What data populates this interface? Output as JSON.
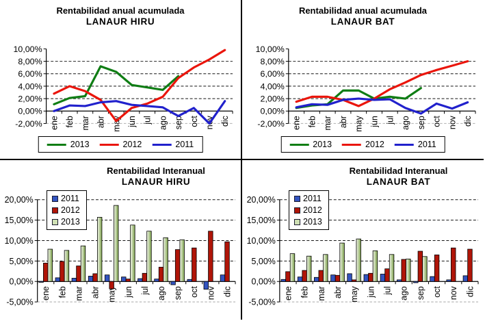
{
  "page": {
    "background": "#ffffff",
    "divider_color": "#000000"
  },
  "chart_data": [
    {
      "id": "acumulada-hiru",
      "type": "line",
      "title": "Rentabilidad anual acumulada",
      "subtitle": "LANAUR HIRU",
      "categories": [
        "ene",
        "feb",
        "mar",
        "abr",
        "may",
        "jun",
        "jul",
        "ago",
        "sep",
        "oct",
        "nov",
        "dic"
      ],
      "ylim": [
        -2,
        10
      ],
      "yticks": [
        {
          "value": 10,
          "label": "10,00%"
        },
        {
          "value": 8,
          "label": "8,00%"
        },
        {
          "value": 6,
          "label": "6,00%"
        },
        {
          "value": 4,
          "label": "4,00%"
        },
        {
          "value": 2,
          "label": "2,00%"
        },
        {
          "value": 0,
          "label": "0,00%"
        },
        {
          "value": -2,
          "label": "-2,00%"
        }
      ],
      "grid_major": [
        8,
        6,
        4,
        2
      ],
      "grid_light": [
        -2
      ],
      "legend_position": "bottom",
      "series": [
        {
          "name": "2013",
          "color": "#0f7d14",
          "values": [
            1.1,
            2.1,
            2.4,
            7.2,
            6.3,
            4.2,
            3.8,
            3.4,
            5.6,
            null,
            null,
            null
          ]
        },
        {
          "name": "2012",
          "color": "#ea150b",
          "values": [
            2.8,
            4.0,
            3.2,
            1.8,
            -1.6,
            0.5,
            1.2,
            2.3,
            5.3,
            7.0,
            8.3,
            9.8
          ]
        },
        {
          "name": "2011",
          "color": "#2121cc",
          "values": [
            0.0,
            0.9,
            0.8,
            1.4,
            1.6,
            1.0,
            0.8,
            0.6,
            -0.8,
            0.5,
            -2.0,
            1.6
          ]
        }
      ]
    },
    {
      "id": "acumulada-bat",
      "type": "line",
      "title": "Rentabilidad anual acumulada",
      "subtitle": "LANAUR BAT",
      "categories": [
        "ene",
        "feb",
        "mar",
        "abr",
        "may",
        "jun",
        "jul",
        "ago",
        "sep",
        "oct",
        "nov",
        "dic"
      ],
      "ylim": [
        -2,
        10
      ],
      "yticks": [
        {
          "value": 10,
          "label": "10,00%"
        },
        {
          "value": 8,
          "label": "8,00%"
        },
        {
          "value": 6,
          "label": "6,00%"
        },
        {
          "value": 4,
          "label": "4,00%"
        },
        {
          "value": 2,
          "label": "2,00%"
        },
        {
          "value": 0,
          "label": "0,00%"
        },
        {
          "value": -2,
          "label": "-2,00%"
        }
      ],
      "grid_major": [
        8,
        6,
        4,
        2
      ],
      "grid_light": [
        -2
      ],
      "legend_position": "bottom",
      "series": [
        {
          "name": "2013",
          "color": "#0f7d14",
          "values": [
            0.5,
            0.9,
            1.1,
            3.3,
            3.3,
            2.0,
            2.3,
            2.0,
            3.7,
            null,
            null,
            null
          ]
        },
        {
          "name": "2012",
          "color": "#ea150b",
          "values": [
            1.5,
            2.3,
            2.3,
            1.8,
            0.8,
            2.0,
            3.5,
            4.6,
            5.8,
            6.6,
            7.3,
            8.0
          ]
        },
        {
          "name": "2011",
          "color": "#2121cc",
          "values": [
            0.6,
            1.1,
            1.0,
            1.8,
            2.0,
            1.8,
            1.9,
            0.5,
            -0.4,
            1.2,
            0.4,
            1.4
          ]
        }
      ]
    },
    {
      "id": "interanual-hiru",
      "type": "bar",
      "title": "Rentabilidad Interanual",
      "subtitle": "LANAUR HIRU",
      "categories": [
        "ene",
        "feb",
        "mar",
        "abr",
        "may",
        "jun",
        "jul",
        "ago",
        "sep",
        "oct",
        "nov",
        "dic"
      ],
      "ylim": [
        -5,
        20
      ],
      "yticks": [
        {
          "value": 20,
          "label": "20,00%"
        },
        {
          "value": 15,
          "label": "15,00%"
        },
        {
          "value": 10,
          "label": "10,00%"
        },
        {
          "value": 5,
          "label": "5,00%"
        },
        {
          "value": 0,
          "label": "0,00%"
        },
        {
          "value": -5,
          "label": "-5,00%"
        }
      ],
      "grid_major": [
        20,
        15,
        10,
        5
      ],
      "grid_light": [
        -5
      ],
      "legend_position": "top-left",
      "series": [
        {
          "name": "2011",
          "color": "#3354c0",
          "values": [
            -0.2,
            0.9,
            0.8,
            1.3,
            1.6,
            1.1,
            0.7,
            0.6,
            -0.8,
            0.5,
            -1.9,
            1.6
          ]
        },
        {
          "name": "2012",
          "color": "#b01508",
          "values": [
            4.5,
            4.9,
            3.8,
            1.9,
            -1.8,
            0.6,
            2.0,
            3.5,
            7.8,
            8.2,
            12.3,
            9.7
          ]
        },
        {
          "name": "2013",
          "color": "#9fb86a",
          "gradient": [
            "#f4f8ec",
            "#7da24b"
          ],
          "legend_color": "#cfe0b4",
          "values": [
            7.9,
            7.6,
            8.7,
            15.7,
            18.6,
            13.8,
            12.3,
            10.7,
            10.2,
            null,
            null,
            null
          ]
        }
      ]
    },
    {
      "id": "interanual-bat",
      "type": "bar",
      "title": "Rentabilidad Interanual",
      "subtitle": "LANAUR BAT",
      "categories": [
        "ene",
        "feb",
        "mar",
        "abr",
        "may",
        "jun",
        "jul",
        "ago",
        "sep",
        "oct",
        "nov",
        "dic"
      ],
      "ylim": [
        -5,
        20
      ],
      "yticks": [
        {
          "value": 20,
          "label": "20,00%"
        },
        {
          "value": 15,
          "label": "15,00%"
        },
        {
          "value": 10,
          "label": "10,00%"
        },
        {
          "value": 5,
          "label": "5,00%"
        },
        {
          "value": 0,
          "label": "0,00%"
        },
        {
          "value": -5,
          "label": "-5,00%"
        }
      ],
      "grid_major": [
        20,
        15,
        10,
        5
      ],
      "grid_light": [
        -5
      ],
      "legend_position": "top-left",
      "series": [
        {
          "name": "2011",
          "color": "#3354c0",
          "values": [
            0.5,
            1.1,
            1.0,
            1.6,
            1.9,
            1.7,
            1.8,
            0.4,
            -0.3,
            1.2,
            0.4,
            1.4
          ]
        },
        {
          "name": "2012",
          "color": "#b01508",
          "values": [
            2.4,
            2.7,
            2.7,
            1.5,
            0.4,
            2.0,
            3.1,
            5.4,
            7.4,
            6.5,
            8.2,
            7.9
          ]
        },
        {
          "name": "2013",
          "color": "#9fb86a",
          "gradient": [
            "#f4f8ec",
            "#7da24b"
          ],
          "legend_color": "#cfe0b4",
          "values": [
            6.8,
            6.2,
            6.6,
            9.4,
            10.4,
            7.5,
            6.6,
            5.5,
            6.1,
            null,
            null,
            null
          ]
        }
      ]
    }
  ]
}
